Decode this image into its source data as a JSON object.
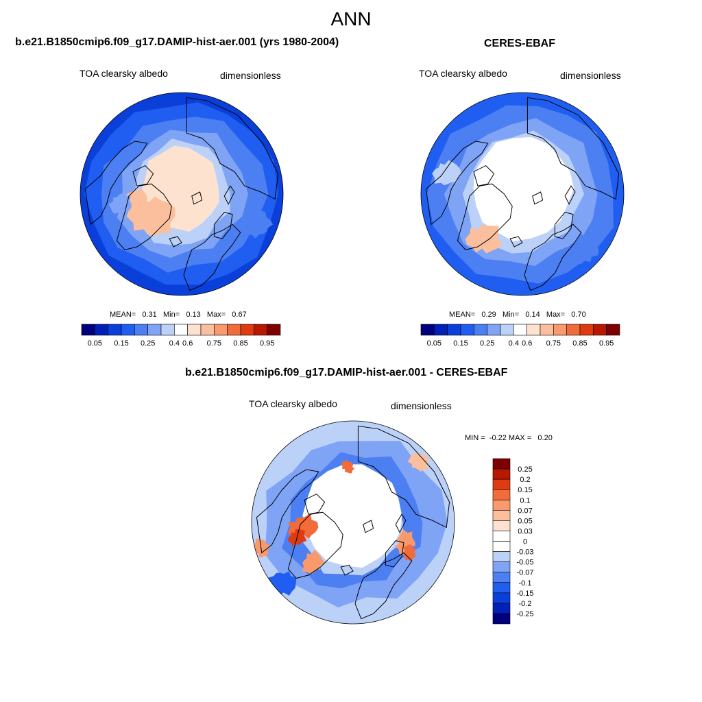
{
  "figure": {
    "title": "ANN",
    "colors": {
      "palette": [
        "#00007f",
        "#0020b8",
        "#0a3fd9",
        "#1f5ef0",
        "#4c7ff2",
        "#7fa3f5",
        "#bcd1f8",
        "#ffffff",
        "#fde2cf",
        "#fbbf9d",
        "#f89a6c",
        "#f26b3a",
        "#e03b10",
        "#b81800",
        "#7f0000"
      ],
      "land": "#ffffff",
      "coast": "#000000"
    }
  },
  "panels": {
    "model": {
      "title": "b.e21.B1850cmip6.f09_g17.DAMIP-hist-aer.001 (yrs 1980-2004)",
      "variable": "TOA clearsky albedo",
      "units": "dimensionless",
      "stats": {
        "mean_label": "MEAN=",
        "mean": "0.31",
        "min_label": "Min=",
        "min": "0.13",
        "max_label": "Max=",
        "max": "0.67"
      }
    },
    "obs": {
      "title": "CERES-EBAF",
      "variable": "TOA clearsky albedo",
      "units": "dimensionless",
      "stats": {
        "mean_label": "MEAN=",
        "mean": "0.29",
        "min_label": "Min=",
        "min": "0.14",
        "max_label": "Max=",
        "max": "0.70"
      }
    },
    "diff": {
      "title": "b.e21.B1850cmip6.f09_g17.DAMIP-hist-aer.001 - CERES-EBAF",
      "variable": "TOA clearsky albedo",
      "units": "dimensionless",
      "stats": {
        "min_label": "MIN =",
        "min": "-0.22",
        "max_label": "MAX =",
        "max": "0.20"
      }
    }
  },
  "chart_data": [
    {
      "type": "heatmap",
      "projection": "north-polar-stereographic",
      "title": "b.e21.B1850cmip6.f09_g17.DAMIP-hist-aer.001 (yrs 1980-2004)",
      "variable": "TOA clearsky albedo",
      "units": "dimensionless",
      "mean": 0.31,
      "min": 0.13,
      "max": 0.67,
      "colorbar_levels": [
        0.05,
        0.1,
        0.15,
        0.2,
        0.25,
        0.3,
        0.4,
        0.5,
        0.6,
        0.7,
        0.75,
        0.8,
        0.85,
        0.9,
        0.95
      ],
      "colorbar_ticks": [
        "0.05",
        "0.15",
        "0.25",
        "0.4",
        "0.6",
        "0.75",
        "0.85",
        "0.95"
      ]
    },
    {
      "type": "heatmap",
      "projection": "north-polar-stereographic",
      "title": "CERES-EBAF",
      "variable": "TOA clearsky albedo",
      "units": "dimensionless",
      "mean": 0.29,
      "min": 0.14,
      "max": 0.7,
      "colorbar_levels": [
        0.05,
        0.1,
        0.15,
        0.2,
        0.25,
        0.3,
        0.4,
        0.5,
        0.6,
        0.7,
        0.75,
        0.8,
        0.85,
        0.9,
        0.95
      ],
      "colorbar_ticks": [
        "0.05",
        "0.15",
        "0.25",
        "0.4",
        "0.6",
        "0.75",
        "0.85",
        "0.95"
      ]
    },
    {
      "type": "heatmap",
      "projection": "north-polar-stereographic",
      "title": "b.e21.B1850cmip6.f09_g17.DAMIP-hist-aer.001 - CERES-EBAF",
      "variable": "TOA clearsky albedo",
      "units": "dimensionless",
      "min": -0.22,
      "max": 0.2,
      "colorbar_ticks": [
        "0.25",
        "0.2",
        "0.15",
        "0.1",
        "0.07",
        "0.05",
        "0.03",
        "0",
        "-0.03",
        "-0.05",
        "-0.07",
        "-0.1",
        "-0.15",
        "-0.2",
        "-0.25"
      ]
    }
  ]
}
